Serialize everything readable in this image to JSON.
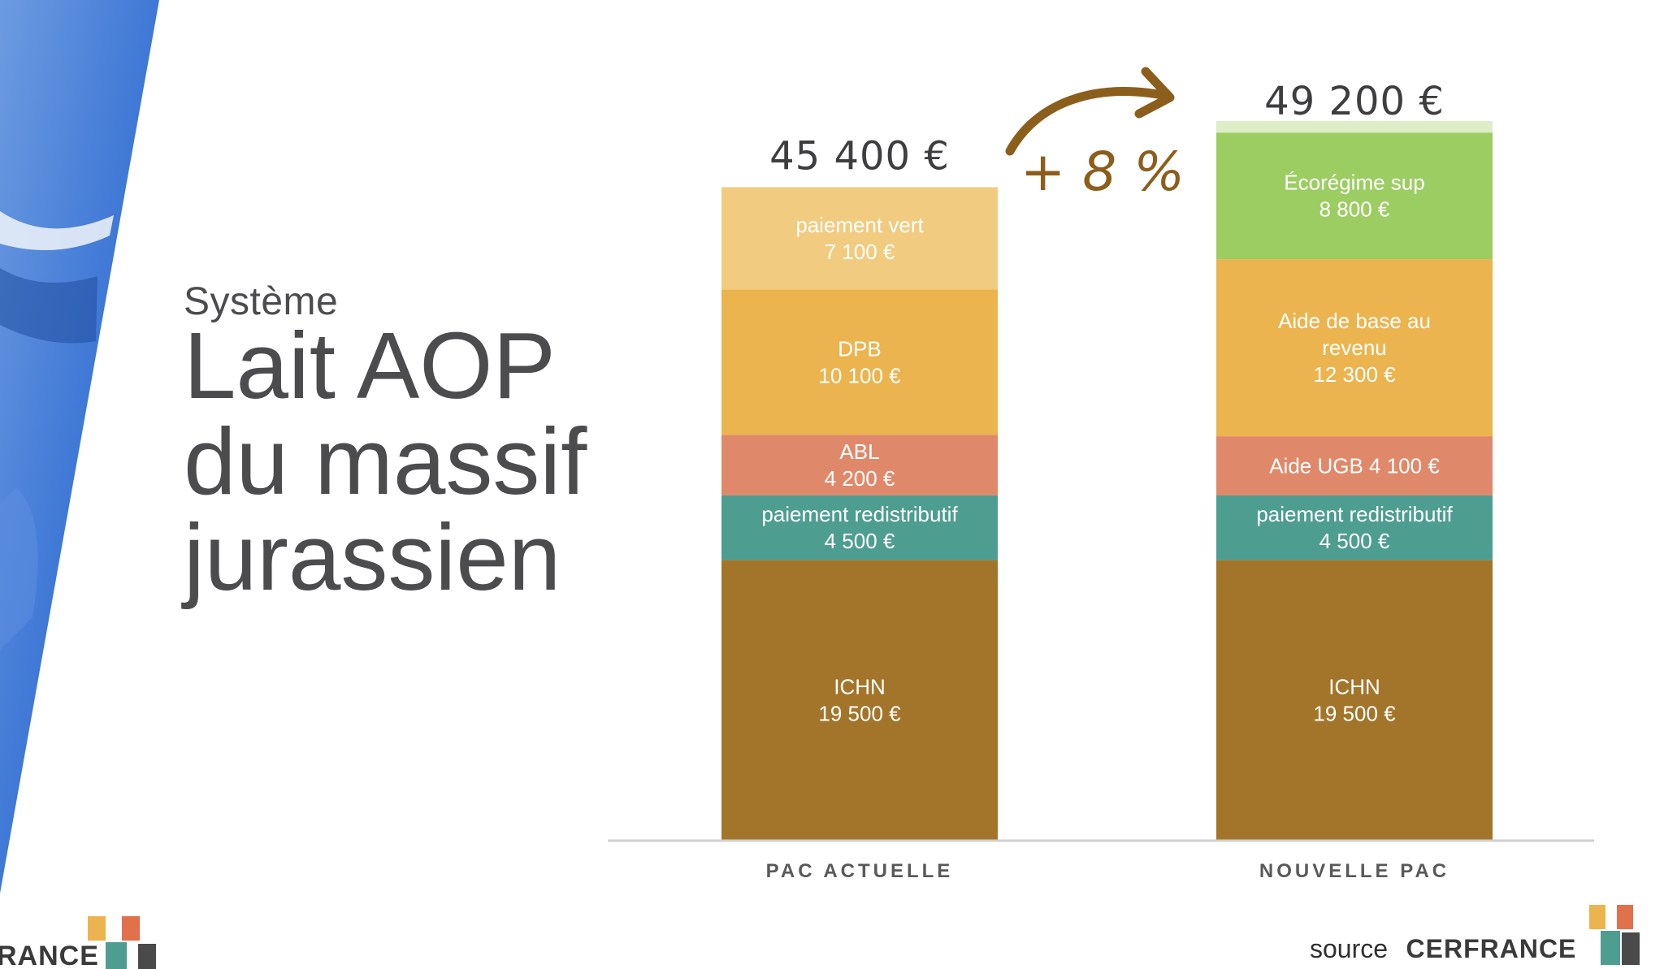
{
  "title": {
    "subtitle": "Système",
    "lines": [
      "Lait AOP",
      "du massif",
      "jurassien"
    ]
  },
  "chart_data": {
    "type": "bar",
    "stacked": true,
    "ylim": [
      0,
      52000
    ],
    "grid": false,
    "categories": [
      "PAC ACTUELLE",
      "NOUVELLE PAC"
    ],
    "bars": [
      {
        "category": "PAC ACTUELLE",
        "total": 45400,
        "total_label": "45 400 €",
        "segments": [
          {
            "lines": [
              "ICHN",
              "19 500 €"
            ],
            "value": 19500,
            "color": "#a3752a"
          },
          {
            "lines": [
              "paiement redistributif",
              "4 500 €"
            ],
            "value": 4500,
            "color": "#4e9d91"
          },
          {
            "lines": [
              "ABL",
              "4 200 €"
            ],
            "value": 4200,
            "color": "#e0896a"
          },
          {
            "lines": [
              "DPB",
              "10 100 €"
            ],
            "value": 10100,
            "color": "#ebb44f"
          },
          {
            "lines": [
              "paiement vert",
              "7 100 €"
            ],
            "value": 7100,
            "color": "#f1cb7f"
          }
        ]
      },
      {
        "category": "NOUVELLE PAC",
        "total": 49200,
        "total_label": "49 200 €",
        "segments": [
          {
            "lines": [
              "ICHN",
              "19 500 €"
            ],
            "value": 19500,
            "color": "#a3752a"
          },
          {
            "lines": [
              "paiement redistributif",
              "4 500 €"
            ],
            "value": 4500,
            "color": "#4e9d91"
          },
          {
            "lines": [
              "Aide UGB  4 100 €"
            ],
            "value": 4100,
            "color": "#e0896a"
          },
          {
            "lines": [
              "Aide de base au",
              "revenu",
              "12 300 €"
            ],
            "value": 12300,
            "color": "#ebb44f"
          },
          {
            "lines": [
              "Écorégime sup",
              "8 800 €"
            ],
            "value": 8800,
            "color": "#9ccd62"
          },
          {
            "lines": [],
            "value": 800,
            "color": "#deedc6"
          }
        ]
      }
    ],
    "annotation": {
      "text": "+ 8 %",
      "color": "#8c5e1c"
    }
  },
  "footer": {
    "left_logo_text": "RANCE",
    "source_word": "source",
    "source_brand": "CERFRANCE"
  }
}
